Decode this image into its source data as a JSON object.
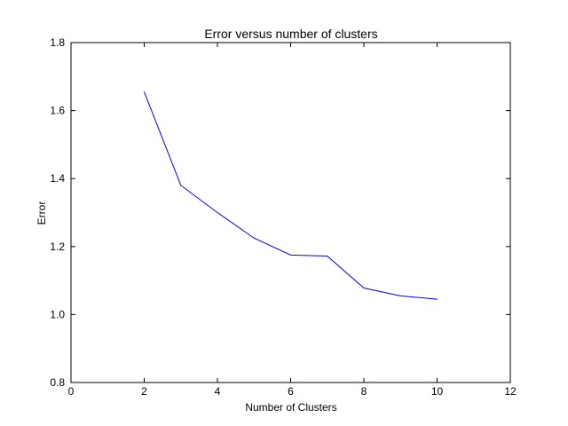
{
  "chart_data": {
    "type": "line",
    "title": "Error versus number of clusters",
    "xlabel": "Number of Clusters",
    "ylabel": "Error",
    "xlim": [
      0,
      12
    ],
    "ylim": [
      0.8,
      1.8
    ],
    "xticks": [
      0,
      2,
      4,
      6,
      8,
      10,
      12
    ],
    "yticks": [
      0.8,
      1.0,
      1.2,
      1.4,
      1.6,
      1.8
    ],
    "grid": false,
    "series": [
      {
        "color": "#0000ff",
        "x": [
          2,
          3,
          4,
          5,
          6,
          7,
          8,
          9,
          10
        ],
        "y": [
          1.655,
          1.38,
          1.3,
          1.225,
          1.175,
          1.172,
          1.078,
          1.055,
          1.045
        ]
      }
    ]
  }
}
